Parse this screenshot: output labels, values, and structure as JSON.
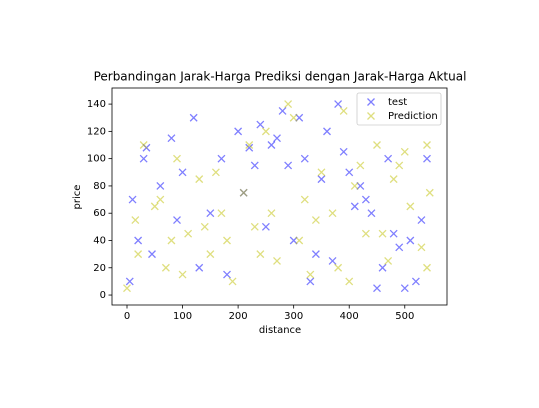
{
  "chart_data": {
    "type": "scatter",
    "title": "Perbandingan Jarak-Harga Prediksi dengan Jarak-Harga Aktual",
    "x_label": "distance",
    "y_label": "price",
    "xlim": [
      -27,
      576
    ],
    "ylim": [
      -7.3,
      151.8
    ],
    "xticks": [
      0,
      100,
      200,
      300,
      400,
      500
    ],
    "yticks": [
      0,
      20,
      40,
      60,
      80,
      100,
      120,
      140
    ],
    "legend": "upper right",
    "marker": "x",
    "alpha": 0.5,
    "series": [
      {
        "name": "test",
        "color": "#0000ff",
        "x": [
          5,
          20,
          35,
          30,
          60,
          80,
          100,
          120,
          150,
          170,
          200,
          220,
          240,
          260,
          280,
          300,
          320,
          340,
          360,
          380,
          400,
          420,
          440,
          460,
          480,
          500,
          520,
          540,
          10,
          45,
          90,
          130,
          180,
          210,
          250,
          290,
          330,
          370,
          410,
          450,
          490,
          530,
          230,
          270,
          310,
          350,
          390,
          430,
          470,
          510
        ],
        "y": [
          10,
          40,
          108,
          100,
          80,
          115,
          90,
          130,
          60,
          100,
          120,
          108,
          125,
          110,
          135,
          40,
          100,
          30,
          120,
          140,
          90,
          80,
          60,
          20,
          45,
          5,
          10,
          100,
          70,
          30,
          55,
          20,
          15,
          75,
          50,
          95,
          10,
          25,
          65,
          5,
          35,
          55,
          95,
          115,
          130,
          85,
          105,
          70,
          100,
          40
        ]
      },
      {
        "name": "Prediction",
        "color": "#bfbf00",
        "x": [
          0,
          15,
          30,
          50,
          70,
          90,
          110,
          130,
          150,
          170,
          190,
          210,
          230,
          250,
          270,
          290,
          310,
          330,
          350,
          370,
          390,
          410,
          430,
          450,
          470,
          490,
          510,
          530,
          545,
          20,
          60,
          100,
          140,
          180,
          220,
          260,
          300,
          340,
          380,
          420,
          460,
          500,
          540,
          80,
          160,
          240,
          320,
          400,
          480,
          540
        ],
        "y": [
          5,
          55,
          110,
          65,
          20,
          100,
          45,
          85,
          30,
          60,
          10,
          75,
          50,
          120,
          25,
          140,
          40,
          15,
          90,
          60,
          135,
          80,
          45,
          110,
          25,
          95,
          65,
          35,
          75,
          30,
          70,
          15,
          50,
          40,
          110,
          60,
          130,
          55,
          20,
          95,
          45,
          105,
          20,
          40,
          90,
          30,
          70,
          10,
          85,
          110
        ]
      }
    ]
  }
}
